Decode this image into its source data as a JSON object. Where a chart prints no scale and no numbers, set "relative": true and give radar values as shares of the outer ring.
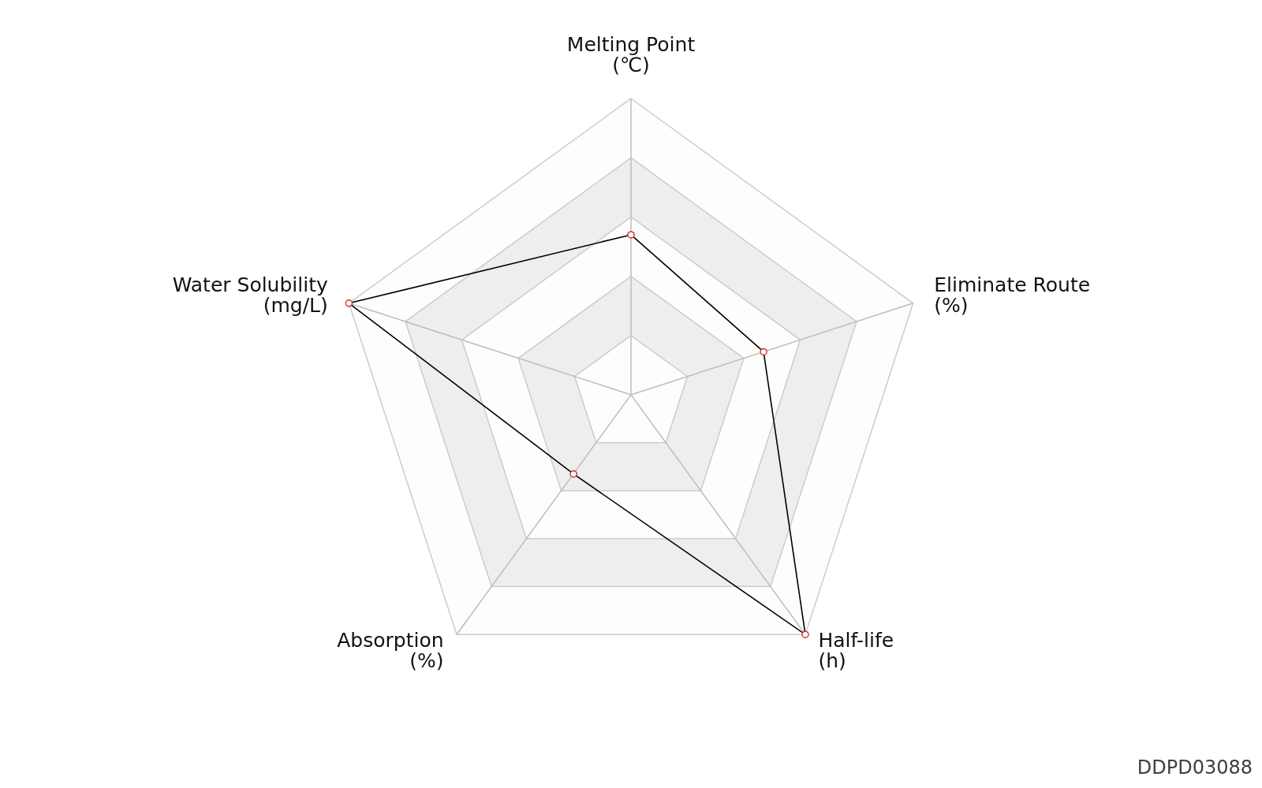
{
  "chart_data": {
    "type": "radar",
    "categories": [
      "Melting Point\n(℃)",
      "Eliminate Route\n(%)",
      "Half-life\n(h)",
      "Absorption\n(%)",
      "Water Solubility\n(mg/L)"
    ],
    "relative": true,
    "series": [
      {
        "color": "#000000",
        "values": [
          0.54,
          0.47,
          1,
          0.33,
          1
        ]
      }
    ],
    "grid": true,
    "marker": "circle",
    "line_style": "solid",
    "annotations": [
      "DDPD03088"
    ]
  }
}
